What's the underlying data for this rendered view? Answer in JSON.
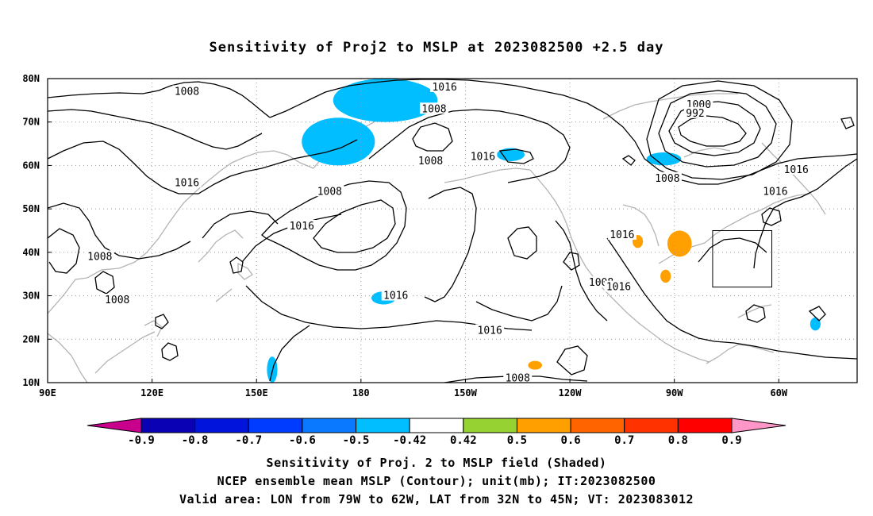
{
  "chart_data": {
    "type": "contour",
    "title": "Sensitivity of Proj2 to MSLP at 2023082500 +2.5 day",
    "x_ticks": [
      "90E",
      "120E",
      "150E",
      "180",
      "150W",
      "120W",
      "90W",
      "60W"
    ],
    "y_ticks": [
      "10N",
      "20N",
      "30N",
      "40N",
      "50N",
      "60N",
      "70N",
      "80N"
    ],
    "lon_range_east": [
      90,
      322.5
    ],
    "lat_range": [
      10,
      80
    ],
    "grid": true,
    "contour_labels": [
      {
        "text": "1008",
        "lon": 130,
        "lat": 77
      },
      {
        "text": "1016",
        "lon": 204,
        "lat": 78
      },
      {
        "text": "1008",
        "lon": 201,
        "lat": 73
      },
      {
        "text": "1000",
        "lon": 277,
        "lat": 74
      },
      {
        "text": "992",
        "lon": 276,
        "lat": 72
      },
      {
        "text": "1016",
        "lon": 130,
        "lat": 56
      },
      {
        "text": "1008",
        "lon": 171,
        "lat": 54
      },
      {
        "text": "1008",
        "lon": 200,
        "lat": 61
      },
      {
        "text": "1016",
        "lon": 215,
        "lat": 62
      },
      {
        "text": "1016",
        "lon": 163,
        "lat": 46
      },
      {
        "text": "1008",
        "lon": 105,
        "lat": 39
      },
      {
        "text": "1008",
        "lon": 110,
        "lat": 29
      },
      {
        "text": "1016",
        "lon": 190,
        "lat": 30
      },
      {
        "text": "1016",
        "lon": 217,
        "lat": 22
      },
      {
        "text": "1008",
        "lon": 225,
        "lat": 11
      },
      {
        "text": "1016",
        "lon": 255,
        "lat": 44
      },
      {
        "text": "1008",
        "lon": 268,
        "lat": 57
      },
      {
        "text": "1016",
        "lon": 305,
        "lat": 59
      },
      {
        "text": "1016",
        "lon": 299,
        "lat": 54
      },
      {
        "text": "1008",
        "lon": 249,
        "lat": 33
      },
      {
        "text": "1016",
        "lon": 254,
        "lat": 32
      }
    ],
    "shaded_regions": [
      {
        "value": -0.5,
        "lon": [
          172,
          202
        ],
        "lat": [
          70,
          80
        ]
      },
      {
        "value": -0.5,
        "lon": [
          163,
          184
        ],
        "lat": [
          60,
          71
        ]
      },
      {
        "value": -0.5,
        "lon": [
          219,
          227
        ],
        "lat": [
          61,
          64
        ]
      },
      {
        "value": -0.5,
        "lon": [
          262,
          272
        ],
        "lat": [
          60,
          63
        ]
      },
      {
        "value": -0.5,
        "lon": [
          183,
          190
        ],
        "lat": [
          28,
          31
        ]
      },
      {
        "value": -0.5,
        "lon": [
          153,
          156
        ],
        "lat": [
          10,
          16
        ]
      },
      {
        "value": -0.5,
        "lon": [
          309,
          312
        ],
        "lat": [
          22,
          25
        ]
      },
      {
        "value": 0.5,
        "lon": [
          268,
          275
        ],
        "lat": [
          39,
          45
        ]
      },
      {
        "value": 0.5,
        "lon": [
          258,
          261
        ],
        "lat": [
          41,
          44
        ]
      },
      {
        "value": 0.5,
        "lon": [
          266,
          269
        ],
        "lat": [
          33,
          36
        ]
      },
      {
        "value": 0.5,
        "lon": [
          228,
          232
        ],
        "lat": [
          13,
          15
        ]
      }
    ],
    "valid_box": {
      "lon": [
        281,
        298
      ],
      "lat": [
        32,
        45
      ]
    },
    "colorbar": {
      "labels": [
        "-0.9",
        "-0.8",
        "-0.7",
        "-0.6",
        "-0.5",
        "-0.42",
        "0.42",
        "0.5",
        "0.6",
        "0.7",
        "0.8",
        "0.9"
      ],
      "colors": [
        "#c8008c",
        "#0a00b4",
        "#0014dc",
        "#003cff",
        "#0a78ff",
        "#00beff",
        "#ffffff",
        "#96d232",
        "#ffa000",
        "#ff6400",
        "#ff3200",
        "#ff0000",
        "#ff96c8"
      ]
    },
    "captions": [
      "Sensitivity of Proj. 2 to MSLP field (Shaded)",
      "NCEP ensemble mean MSLP (Contour); unit(mb); IT:2023082500",
      "Valid area: LON from 79W to 62W, LAT from 32N to 45N; VT: 2023083012"
    ]
  }
}
